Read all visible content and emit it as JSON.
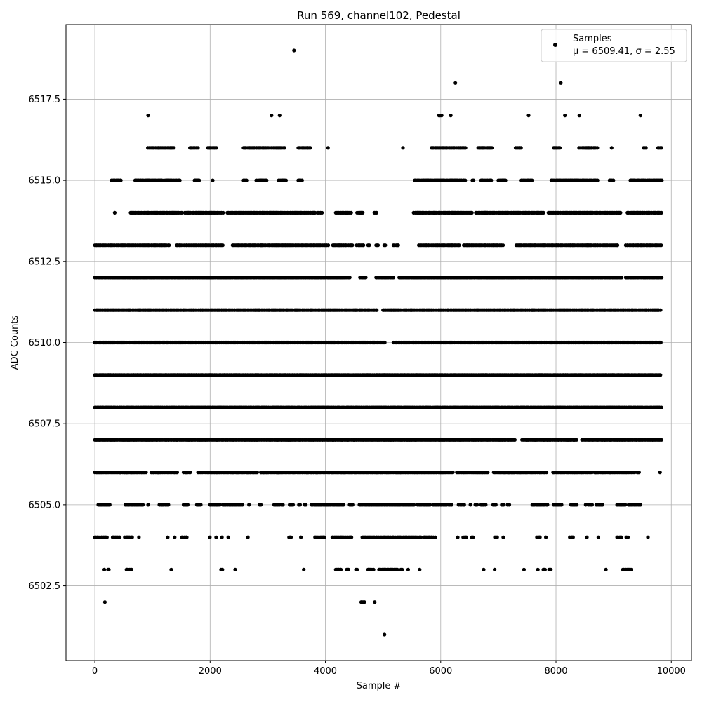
{
  "chart_data": {
    "type": "scatter",
    "title": "Run 569, channel102, Pedestal",
    "xlabel": "Sample #",
    "ylabel": "ADC Counts",
    "xlim": [
      -500,
      10350
    ],
    "ylim": [
      6500.2,
      6519.8
    ],
    "x_ticks": [
      0,
      2000,
      4000,
      6000,
      8000,
      10000
    ],
    "x_tick_labels": [
      "0",
      "2000",
      "4000",
      "6000",
      "8000",
      "10000"
    ],
    "y_ticks": [
      6502.5,
      6505.0,
      6507.5,
      6510.0,
      6512.5,
      6515.0,
      6517.5
    ],
    "y_tick_labels": [
      "6502.5",
      "6505.0",
      "6507.5",
      "6510.0",
      "6512.5",
      "6515.0",
      "6517.5"
    ],
    "grid": true,
    "legend": {
      "placement": "top-right",
      "series_label": "Samples",
      "stats_label": "μ = 6509.41, σ = 2.55"
    },
    "series": [
      {
        "name": "Samples",
        "color": "#000000",
        "marker": "circle",
        "level_ranges": [
          {
            "y": 6519,
            "ranges": [
              [
                3450,
                3460
              ]
            ]
          },
          {
            "y": 6518,
            "ranges": [
              [
                6250,
                6260
              ],
              [
                8080,
                8090
              ]
            ]
          },
          {
            "y": 6517,
            "ranges": [
              [
                920,
                930
              ],
              [
                3060,
                3070
              ],
              [
                3200,
                3210
              ],
              [
                5970,
                6030
              ],
              [
                6170,
                6180
              ],
              [
                7520,
                7530
              ],
              [
                8150,
                8160
              ],
              [
                8400,
                8410
              ],
              [
                9460,
                9470
              ]
            ]
          },
          {
            "y": 6516,
            "ranges": [
              [
                920,
                1380
              ],
              [
                1650,
                1800
              ],
              [
                1960,
                2110
              ],
              [
                2580,
                3310
              ],
              [
                3530,
                3740
              ],
              [
                4040,
                4050
              ],
              [
                5340,
                5350
              ],
              [
                5840,
                6440
              ],
              [
                6650,
                6900
              ],
              [
                7300,
                7420
              ],
              [
                7960,
                8080
              ],
              [
                8400,
                8730
              ],
              [
                8960,
                8970
              ],
              [
                9520,
                9570
              ],
              [
                9770,
                9840
              ]
            ]
          },
          {
            "y": 6515,
            "ranges": [
              [
                290,
                460
              ],
              [
                700,
                1180
              ],
              [
                1200,
                1480
              ],
              [
                1730,
                1820
              ],
              [
                2040,
                2050
              ],
              [
                2580,
                2660
              ],
              [
                2800,
                3000
              ],
              [
                3190,
                3330
              ],
              [
                3530,
                3610
              ],
              [
                5550,
                6430
              ],
              [
                6550,
                6570
              ],
              [
                6700,
                6880
              ],
              [
                7000,
                7130
              ],
              [
                7400,
                7600
              ],
              [
                7920,
                8460
              ],
              [
                8470,
                8730
              ],
              [
                8930,
                9010
              ],
              [
                9290,
                9840
              ]
            ]
          },
          {
            "y": 6514,
            "ranges": [
              [
                340,
                350
              ],
              [
                620,
                1510
              ],
              [
                1560,
                2240
              ],
              [
                2300,
                2750
              ],
              [
                2760,
                3820
              ],
              [
                3860,
                3950
              ],
              [
                4180,
                4460
              ],
              [
                4550,
                4660
              ],
              [
                4850,
                4890
              ],
              [
                5530,
                6550
              ],
              [
                6610,
                6780
              ],
              [
                6760,
                7400
              ],
              [
                7410,
                7800
              ],
              [
                7870,
                8950
              ],
              [
                8960,
                9120
              ],
              [
                9240,
                9840
              ]
            ]
          },
          {
            "y": 6513,
            "ranges": [
              [
                0,
                1290
              ],
              [
                1420,
                2230
              ],
              [
                2390,
                4060
              ],
              [
                4130,
                4470
              ],
              [
                4540,
                4680
              ],
              [
                4740,
                4760
              ],
              [
                4880,
                4920
              ],
              [
                5020,
                5040
              ],
              [
                5180,
                5280
              ],
              [
                5620,
                6330
              ],
              [
                6400,
                6880
              ],
              [
                6880,
                7090
              ],
              [
                7310,
                9090
              ],
              [
                9210,
                9840
              ]
            ]
          },
          {
            "y": 6512,
            "ranges": [
              [
                0,
                4440
              ],
              [
                4600,
                4700
              ],
              [
                4880,
                5200
              ],
              [
                5280,
                9150
              ],
              [
                9210,
                9840
              ]
            ]
          },
          {
            "y": 6511,
            "ranges": [
              [
                0,
                4900
              ],
              [
                5000,
                9840
              ]
            ]
          },
          {
            "y": 6510,
            "ranges": [
              [
                0,
                4980
              ],
              [
                5000,
                5030
              ],
              [
                5180,
                9280
              ],
              [
                9300,
                9840
              ]
            ]
          },
          {
            "y": 6509,
            "ranges": [
              [
                0,
                4450
              ],
              [
                4460,
                9840
              ]
            ]
          },
          {
            "y": 6508,
            "ranges": [
              [
                0,
                9840
              ]
            ]
          },
          {
            "y": 6507,
            "ranges": [
              [
                0,
                7290
              ],
              [
                7410,
                8370
              ],
              [
                8450,
                9840
              ]
            ]
          },
          {
            "y": 6506,
            "ranges": [
              [
                0,
                440
              ],
              [
                440,
                900
              ],
              [
                980,
                1430
              ],
              [
                1540,
                1680
              ],
              [
                1790,
                2830
              ],
              [
                2880,
                3180
              ],
              [
                3180,
                6220
              ],
              [
                6280,
                6840
              ],
              [
                6920,
                7850
              ],
              [
                7950,
                8630
              ],
              [
                8670,
                9370
              ],
              [
                9410,
                9440
              ],
              [
                9800,
                9810
              ]
            ]
          },
          {
            "y": 6505,
            "ranges": [
              [
                60,
                270
              ],
              [
                530,
                860
              ],
              [
                920,
                930
              ],
              [
                1120,
                1280
              ],
              [
                1540,
                1620
              ],
              [
                1770,
                1850
              ],
              [
                2000,
                2170
              ],
              [
                2220,
                2450
              ],
              [
                2460,
                2560
              ],
              [
                2670,
                2680
              ],
              [
                2860,
                2880
              ],
              [
                3110,
                3220
              ],
              [
                3240,
                3280
              ],
              [
                3380,
                3440
              ],
              [
                3540,
                3560
              ],
              [
                3640,
                3660
              ],
              [
                3760,
                4330
              ],
              [
                4420,
                4500
              ],
              [
                4590,
                5210
              ],
              [
                5220,
                5550
              ],
              [
                5600,
                5830
              ],
              [
                5870,
                6110
              ],
              [
                6140,
                6200
              ],
              [
                6310,
                6410
              ],
              [
                6510,
                6520
              ],
              [
                6600,
                6630
              ],
              [
                6700,
                6790
              ],
              [
                6910,
                6980
              ],
              [
                7060,
                7090
              ],
              [
                7160,
                7210
              ],
              [
                7590,
                7860
              ],
              [
                7960,
                8120
              ],
              [
                8260,
                8370
              ],
              [
                8510,
                8520
              ],
              [
                8560,
                8630
              ],
              [
                8700,
                8820
              ],
              [
                9060,
                9210
              ],
              [
                9260,
                9480
              ]
            ]
          },
          {
            "y": 6504,
            "ranges": [
              [
                0,
                220
              ],
              [
                310,
                440
              ],
              [
                520,
                650
              ],
              [
                760,
                770
              ],
              [
                1260,
                1270
              ],
              [
                1380,
                1390
              ],
              [
                1510,
                1620
              ],
              [
                1990,
                2000
              ],
              [
                2100,
                2110
              ],
              [
                2200,
                2210
              ],
              [
                2310,
                2320
              ],
              [
                2650,
                2660
              ],
              [
                3370,
                3410
              ],
              [
                3570,
                3580
              ],
              [
                3820,
                3990
              ],
              [
                4120,
                4480
              ],
              [
                4640,
                5660
              ],
              [
                5710,
                5880
              ],
              [
                5900,
                5910
              ],
              [
                6290,
                6300
              ],
              [
                6390,
                6450
              ],
              [
                6540,
                6560
              ],
              [
                6940,
                6980
              ],
              [
                7080,
                7090
              ],
              [
                7670,
                7740
              ],
              [
                7820,
                7830
              ],
              [
                8240,
                8320
              ],
              [
                8530,
                8540
              ],
              [
                8730,
                8740
              ],
              [
                9060,
                9150
              ],
              [
                9220,
                9270
              ],
              [
                9590,
                9600
              ]
            ]
          },
          {
            "y": 6503,
            "ranges": [
              [
                160,
                170
              ],
              [
                230,
                270
              ],
              [
                550,
                640
              ],
              [
                1320,
                1330
              ],
              [
                2190,
                2230
              ],
              [
                2430,
                2440
              ],
              [
                3620,
                3630
              ],
              [
                4180,
                4270
              ],
              [
                4370,
                4400
              ],
              [
                4530,
                4550
              ],
              [
                4740,
                4850
              ],
              [
                4930,
                5000
              ],
              [
                5000,
                5260
              ],
              [
                5310,
                5330
              ],
              [
                5430,
                5440
              ],
              [
                5630,
                5640
              ],
              [
                6740,
                6750
              ],
              [
                6930,
                6940
              ],
              [
                7440,
                7450
              ],
              [
                7680,
                7690
              ],
              [
                7780,
                7810
              ],
              [
                7880,
                7920
              ],
              [
                8860,
                8870
              ],
              [
                9160,
                9310
              ]
            ]
          },
          {
            "y": 6502,
            "ranges": [
              [
                170,
                180
              ],
              [
                4620,
                4680
              ],
              [
                4850,
                4860
              ]
            ]
          },
          {
            "y": 6501,
            "ranges": [
              [
                5020,
                5030
              ]
            ]
          }
        ]
      }
    ]
  }
}
